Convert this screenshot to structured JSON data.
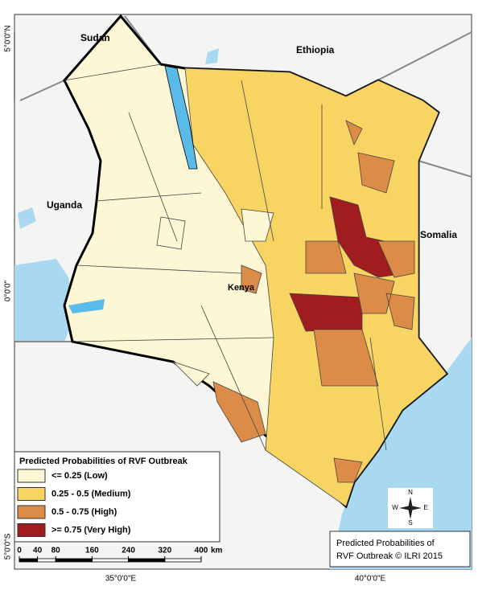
{
  "map": {
    "latitude_labels": [
      "5°0'0\"N",
      "0°0'0\"",
      "5°0'0\"S"
    ],
    "longitude_labels": [
      "35°0'0\"E",
      "40°0'0\"E"
    ],
    "countries": [
      "Sudan",
      "Ethiopia",
      "Uganda",
      "Somalia"
    ],
    "kenya_label": "Kenya",
    "legend": {
      "title": "Predicted Probabilities of RVF Outbreak",
      "items": [
        {
          "label": "<= 0.25 (Low)",
          "color": "#fdf7d6"
        },
        {
          "label": "0.25 - 0.5 (Medium)",
          "color": "#f8d463"
        },
        {
          "label": "0.5 - 0.75 (High)",
          "color": "#dd8c48"
        },
        {
          "label": ">= 0.75 (Very High)",
          "color": "#a01c1f"
        }
      ]
    },
    "scale_bar": {
      "ticks": [
        0,
        40,
        80,
        160,
        240,
        320,
        400
      ],
      "unit": "km"
    },
    "compass": [
      "N",
      "E",
      "S",
      "W"
    ],
    "credit": [
      "Predicted Probabilities of",
      "RVF Outbreak © ILRI 2015"
    ]
  }
}
